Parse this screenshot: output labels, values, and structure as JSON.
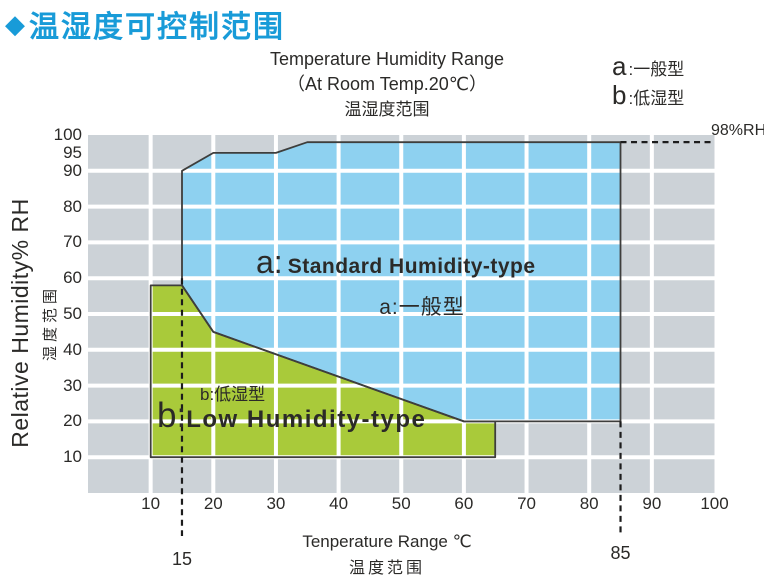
{
  "title": {
    "diamond": "◆",
    "text": "温湿度可控制范围"
  },
  "chart": {
    "title_lines": [
      "Temperature Humidity Range",
      "（At Room Temp.20℃）",
      "温湿度范围"
    ],
    "legend": {
      "items": [
        {
          "key": "a",
          "label": ":一般型"
        },
        {
          "key": "b",
          "label": ":低湿型"
        }
      ]
    },
    "y_axis": {
      "title_en": "Relative Humidity% RH",
      "title_zh": "湿度范围"
    },
    "x_axis": {
      "title_en": "Tenperature Range ℃",
      "title_zh": "温度范围"
    },
    "annotations": {
      "rh_max": "98%RH",
      "t_min": "15",
      "t_max": "85"
    }
  },
  "regions": {
    "a_prefix": "a:",
    "a_en": "Standard Humidity-type",
    "a_zh": "a:一般型",
    "b_small": "b:低湿型",
    "b_prefix": "b:",
    "b_en": "Low Humidity-type"
  },
  "chart_data": {
    "type": "area",
    "title": "Temperature Humidity Range (At Room Temp.20℃) 温湿度范围",
    "xlabel": "Tenperature Range ℃ (温度范围)",
    "ylabel": "Relative Humidity% RH (湿度范围)",
    "xlim": [
      0,
      100
    ],
    "ylim": [
      0,
      100
    ],
    "grid": true,
    "grid_step": 10,
    "x_ticks": [
      10,
      20,
      30,
      40,
      50,
      60,
      70,
      80,
      90,
      100
    ],
    "y_ticks": [
      100,
      95,
      90,
      80,
      70,
      60,
      50,
      40,
      30,
      20,
      10
    ],
    "series": [
      {
        "name": "a: Standard Humidity-type 一般型",
        "color": "#8ed1f0",
        "polygon_t_rh": [
          [
            15,
            90
          ],
          [
            20,
            95
          ],
          [
            30,
            95
          ],
          [
            35,
            98
          ],
          [
            85,
            98
          ],
          [
            85,
            20
          ],
          [
            60,
            20
          ],
          [
            20,
            45
          ],
          [
            15,
            58
          ]
        ]
      },
      {
        "name": "b: Low Humidity-type 低湿型",
        "color": "#a9ca3a",
        "polygon_t_rh": [
          [
            10,
            58
          ],
          [
            15,
            58
          ],
          [
            20,
            45
          ],
          [
            60,
            20
          ],
          [
            65,
            20
          ],
          [
            65,
            10
          ],
          [
            10,
            10
          ]
        ]
      }
    ],
    "dashed_markers": {
      "vertical_t": [
        {
          "t": 15,
          "label": "15"
        },
        {
          "t": 85,
          "label": "85"
        }
      ],
      "horizontal_rh": {
        "rh": 98,
        "label": "98%RH"
      }
    },
    "legend_position": "top-right"
  },
  "colors": {
    "title_blue": "#189bd8",
    "grid_cell": "#ccd2d7",
    "grid_line": "#ffffff",
    "region_a_fill": "#8ed1f0",
    "region_b_fill": "#a9ca3a",
    "outline": "#3e3e3c",
    "dash": "#1c1c1c",
    "text": "#2b2a28"
  }
}
